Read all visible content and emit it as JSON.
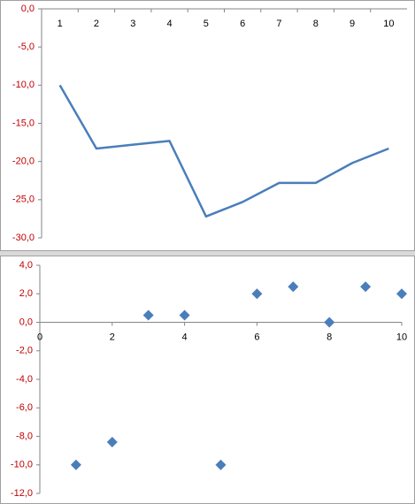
{
  "chart_data": [
    {
      "type": "line",
      "categories": [
        "1",
        "2",
        "3",
        "4",
        "5",
        "6",
        "7",
        "8",
        "9",
        "10"
      ],
      "values": [
        -10.0,
        -18.3,
        -17.8,
        -17.3,
        -27.2,
        -25.3,
        -22.8,
        -22.8,
        -20.2,
        -18.3
      ],
      "color": "#4a7ebb",
      "ylim": [
        -30,
        0
      ],
      "yticks": [
        {
          "value": 0,
          "label": "0,0"
        },
        {
          "value": -5,
          "label": "-5,0"
        },
        {
          "value": -10,
          "label": "-10,0"
        },
        {
          "value": -15,
          "label": "-15,0"
        },
        {
          "value": -20,
          "label": "-20,0"
        },
        {
          "value": -25,
          "label": "-25,0"
        },
        {
          "value": -30,
          "label": "-30,0"
        }
      ]
    },
    {
      "type": "scatter",
      "x": [
        1,
        2,
        3,
        4,
        5,
        6,
        7,
        8,
        9,
        10
      ],
      "values": [
        -10,
        -8.4,
        0.5,
        0.5,
        -10,
        2,
        2.5,
        0,
        2.5,
        2
      ],
      "color": "#4a7ebb",
      "xlim": [
        0,
        10
      ],
      "xticks": [
        0,
        2,
        4,
        6,
        8,
        10
      ],
      "ylim": [
        -12,
        4
      ],
      "yticks": [
        {
          "value": 4,
          "label": "4,0"
        },
        {
          "value": 2,
          "label": "2,0"
        },
        {
          "value": 0,
          "label": "0,0"
        },
        {
          "value": -2,
          "label": "-2,0"
        },
        {
          "value": -4,
          "label": "-4,0"
        },
        {
          "value": -6,
          "label": "-6,0"
        },
        {
          "value": -8,
          "label": "-8,0"
        },
        {
          "value": -10,
          "label": "-10,0"
        },
        {
          "value": -12,
          "label": "-12,0"
        }
      ]
    }
  ]
}
